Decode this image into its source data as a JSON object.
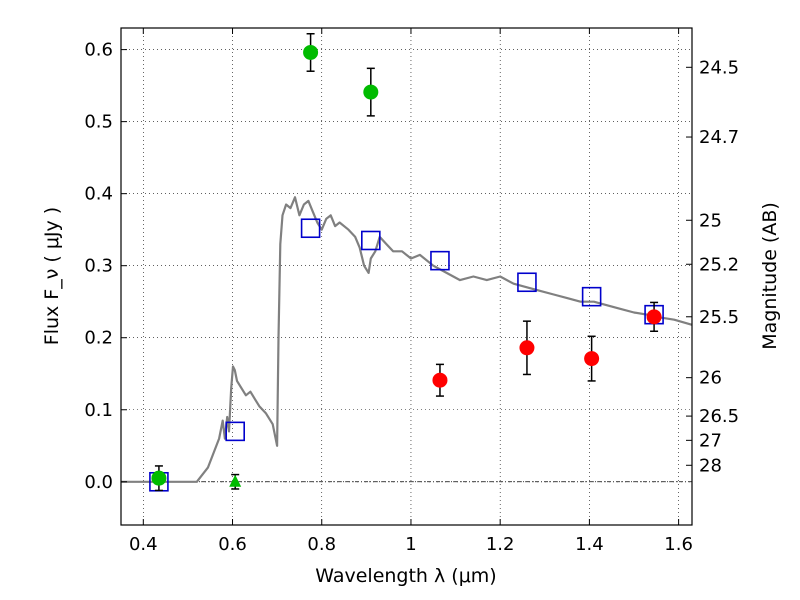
{
  "chart_data": {
    "type": "scatter",
    "title": "",
    "xlabel": "Wavelength  λ (μm)",
    "ylabel": "Flux  F_ν  ( μJy )",
    "y2label": "Magnitude (AB)",
    "xlim": [
      0.35,
      1.63
    ],
    "ylim": [
      -0.06,
      0.63
    ],
    "grid": true,
    "xticks": [
      0.4,
      0.6,
      0.8,
      1.0,
      1.2,
      1.4,
      1.6
    ],
    "xtick_labels": [
      "0.4",
      "0.6",
      "0.8",
      "1",
      "1.2",
      "1.4",
      "1.6"
    ],
    "yticks": [
      0.0,
      0.1,
      0.2,
      0.3,
      0.4,
      0.5,
      0.6
    ],
    "ytick_labels": [
      "0.0",
      "0.1",
      "0.2",
      "0.3",
      "0.4",
      "0.5",
      "0.6"
    ],
    "mag_ticks": [
      "24.5",
      "24.7",
      "25",
      "25.2",
      "25.5",
      "26",
      "26.5",
      "27",
      "28"
    ],
    "zero_line": true,
    "series": [
      {
        "kind": "line",
        "color": "#808080",
        "x": [
          0.35,
          0.52,
          0.545,
          0.57,
          0.578,
          0.583,
          0.588,
          0.592,
          0.597,
          0.601,
          0.605,
          0.61,
          0.62,
          0.63,
          0.64,
          0.65,
          0.66,
          0.675,
          0.69,
          0.7,
          0.703,
          0.707,
          0.712,
          0.72,
          0.73,
          0.74,
          0.75,
          0.76,
          0.77,
          0.78,
          0.79,
          0.8,
          0.81,
          0.82,
          0.83,
          0.84,
          0.86,
          0.875,
          0.885,
          0.895,
          0.905,
          0.91,
          0.92,
          0.93,
          0.945,
          0.96,
          0.98,
          1.0,
          1.02,
          1.05,
          1.08,
          1.11,
          1.14,
          1.17,
          1.2,
          1.23,
          1.26,
          1.29,
          1.32,
          1.35,
          1.38,
          1.41,
          1.44,
          1.47,
          1.5,
          1.53,
          1.56,
          1.59,
          1.63
        ],
        "y": [
          0.0,
          0.0,
          0.02,
          0.06,
          0.085,
          0.06,
          0.09,
          0.07,
          0.13,
          0.16,
          0.155,
          0.14,
          0.13,
          0.12,
          0.125,
          0.115,
          0.105,
          0.095,
          0.08,
          0.05,
          0.2,
          0.33,
          0.37,
          0.385,
          0.38,
          0.395,
          0.37,
          0.385,
          0.39,
          0.375,
          0.36,
          0.35,
          0.365,
          0.37,
          0.355,
          0.36,
          0.35,
          0.34,
          0.325,
          0.3,
          0.29,
          0.31,
          0.32,
          0.34,
          0.33,
          0.32,
          0.32,
          0.31,
          0.315,
          0.3,
          0.29,
          0.28,
          0.285,
          0.28,
          0.285,
          0.275,
          0.27,
          0.265,
          0.26,
          0.255,
          0.25,
          0.25,
          0.245,
          0.24,
          0.235,
          0.232,
          0.228,
          0.225,
          0.218
        ]
      },
      {
        "kind": "square",
        "color": "#0000cc",
        "x": [
          0.435,
          0.606,
          0.775,
          0.91,
          1.065,
          1.26,
          1.405,
          1.545
        ],
        "y": [
          0.0,
          0.07,
          0.352,
          0.335,
          0.307,
          0.277,
          0.257,
          0.232
        ]
      },
      {
        "kind": "point",
        "color": "#00bb00",
        "x": [
          0.435,
          0.775,
          0.91
        ],
        "y": [
          0.005,
          0.596,
          0.541
        ],
        "yerr": [
          0.017,
          0.026,
          0.033
        ]
      },
      {
        "kind": "point",
        "color": "#ff0000",
        "x": [
          1.065,
          1.26,
          1.405,
          1.545
        ],
        "y": [
          0.141,
          0.186,
          0.171,
          0.229
        ],
        "yerr": [
          0.022,
          0.037,
          0.031,
          0.02
        ]
      },
      {
        "kind": "triangle",
        "color": "#00bb00",
        "x": [
          0.606
        ],
        "y": [
          0.0
        ],
        "yerr": [
          0.01
        ]
      }
    ]
  }
}
